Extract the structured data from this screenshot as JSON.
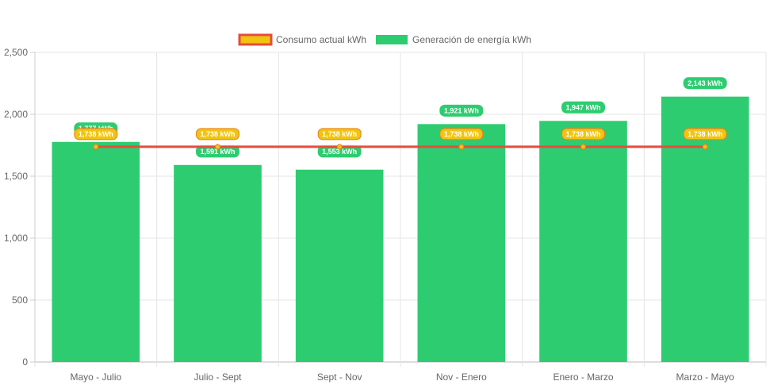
{
  "chart_data": {
    "type": "bar",
    "categories": [
      "Mayo - Julio",
      "Julio - Sept",
      "Sept - Nov",
      "Nov - Enero",
      "Enero - Marzo",
      "Marzo - Mayo"
    ],
    "series": [
      {
        "name": "Consumo actual kWh",
        "type": "line",
        "values": [
          1738,
          1738,
          1738,
          1738,
          1738,
          1738
        ],
        "labels": [
          "1,738 kWh",
          "1,738 kWh",
          "1,738 kWh",
          "1,738 kWh",
          "1,738 kWh",
          "1,738 kWh"
        ],
        "color": "#e74c3c",
        "point_color": "#f1c40f"
      },
      {
        "name": "Generación de energía kWh",
        "type": "bar",
        "values": [
          1777,
          1591,
          1553,
          1921,
          1947,
          2143
        ],
        "labels": [
          "1,777 kWh",
          "1,591 kWh",
          "1,553 kWh",
          "1,921 kWh",
          "1,947 kWh",
          "2,143 kWh"
        ],
        "color": "#2ecc71"
      }
    ],
    "ylim": [
      0,
      2500
    ],
    "yticks": [
      0,
      500,
      1000,
      1500,
      2000,
      2500
    ],
    "ytick_labels": [
      "0",
      "500",
      "1,000",
      "1,500",
      "2,000",
      "2,500"
    ],
    "grid": true,
    "legend_position": "top-center"
  }
}
